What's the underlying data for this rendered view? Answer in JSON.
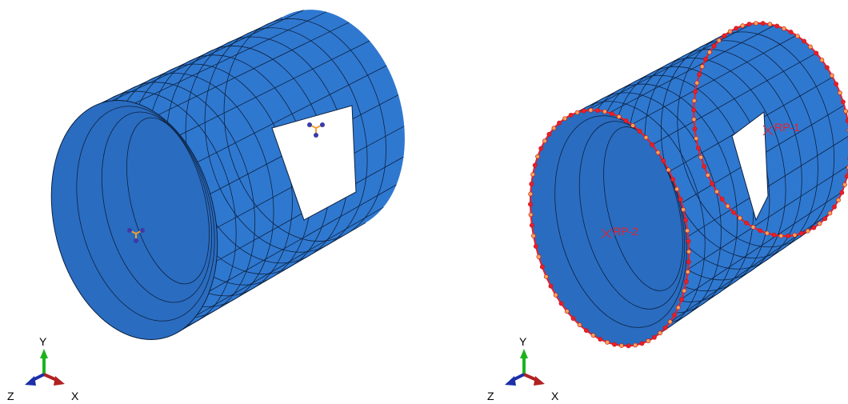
{
  "left_view": {
    "triad": {
      "y": "Y",
      "z": "Z",
      "x": "X"
    }
  },
  "right_view": {
    "triad": {
      "y": "Y",
      "z": "Z",
      "x": "X"
    },
    "reference_points": [
      {
        "label": "RP-1"
      },
      {
        "label": "RP-2"
      }
    ]
  }
}
